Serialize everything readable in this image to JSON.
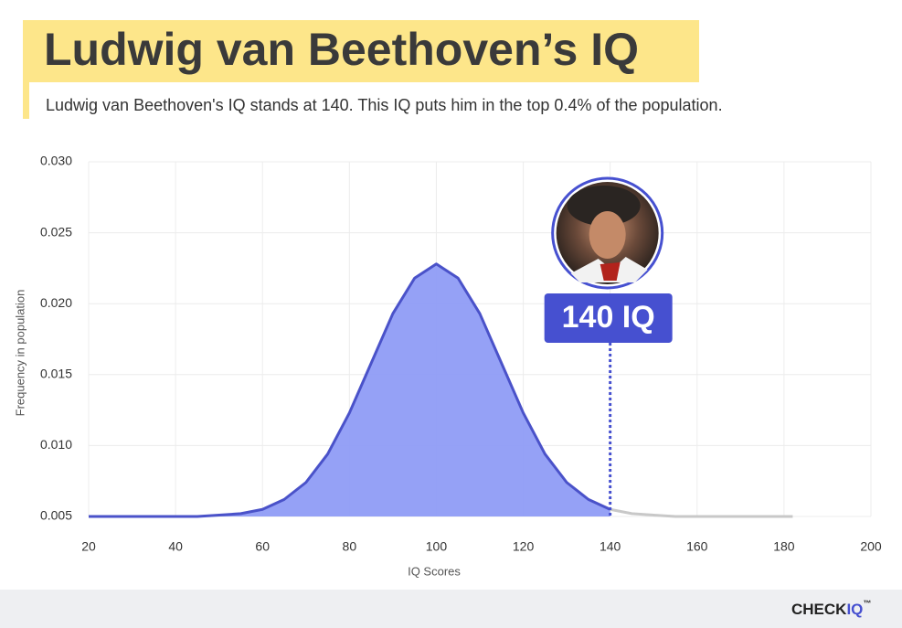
{
  "chart_data": {
    "type": "area",
    "title": "Ludwig van Beethoven’s IQ",
    "subtitle": "Ludwig van Beethoven's IQ stands at 140. This IQ puts him in the top 0.4% of the population.",
    "x_label": "IQ Scores",
    "y_label": "Frequency in population",
    "xlim": [
      20,
      200
    ],
    "ylim": [
      0.005,
      0.03
    ],
    "xticks": [
      20,
      40,
      60,
      80,
      100,
      120,
      140,
      160,
      180,
      200
    ],
    "yticks": [
      0.005,
      {
        "value": 0.01,
        "label": "0.010"
      },
      0.015,
      {
        "value": 0.02,
        "label": "0.020"
      },
      0.025,
      {
        "value": 0.03,
        "label": "0.030"
      }
    ],
    "grid": true,
    "series": [
      {
        "color": "#4a52c9",
        "fill": "#8f9cf6",
        "x": [
          20,
          25,
          30,
          35,
          40,
          45,
          50,
          55,
          60,
          65,
          70,
          75,
          80,
          85,
          90,
          95,
          100,
          105,
          110,
          115,
          120,
          125,
          130,
          135,
          140
        ],
        "values": [
          0.005,
          0.005,
          0.005,
          0.005,
          0.005,
          0.005,
          0.0051,
          0.0052,
          0.0055,
          0.0062,
          0.0074,
          0.0094,
          0.0123,
          0.0158,
          0.0193,
          0.0218,
          0.0228,
          0.0218,
          0.0193,
          0.0158,
          0.0123,
          0.0094,
          0.0074,
          0.0062,
          0.0055
        ]
      },
      {
        "color": "#c8c8c8",
        "x": [
          140,
          145,
          150,
          155,
          160,
          165,
          170,
          175,
          180,
          182
        ],
        "values": [
          0.0055,
          0.0052,
          0.0051,
          0.005,
          0.005,
          0.005,
          0.005,
          0.005,
          0.005,
          0.005
        ]
      }
    ],
    "marker": {
      "x": 140,
      "label": "140 IQ",
      "color": "#4650d0"
    }
  },
  "footer": {
    "brand": "CHECK",
    "brand_accent": "IQ",
    "trademark": "™"
  }
}
